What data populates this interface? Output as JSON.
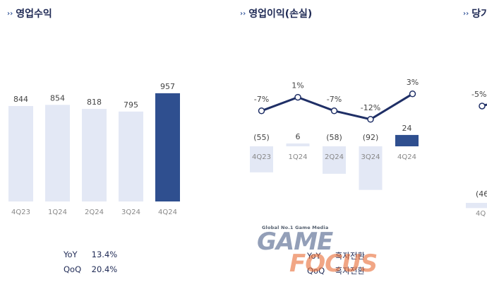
{
  "panels": {
    "revenue": {
      "title": "영업수익"
    },
    "op": {
      "title": "영업이익(손실)"
    },
    "net": {
      "title": "당기"
    }
  },
  "chart_data": [
    {
      "type": "bar",
      "title": "영업수익",
      "categories": [
        "4Q23",
        "1Q24",
        "2Q24",
        "3Q24",
        "4Q24"
      ],
      "values": [
        844,
        854,
        818,
        795,
        957
      ],
      "value_labels": [
        "844",
        "854",
        "818",
        "795",
        "957"
      ],
      "highlight_index": 4,
      "ylim": [
        0,
        1000
      ],
      "grid": false,
      "summary": [
        {
          "label": "YoY",
          "value": "13.4%"
        },
        {
          "label": "QoQ",
          "value": "20.4%"
        }
      ]
    },
    {
      "type": "bar",
      "title": "영업이익(손실)",
      "categories": [
        "4Q23",
        "1Q24",
        "2Q24",
        "3Q24",
        "4Q24"
      ],
      "values": [
        -55,
        6,
        -58,
        -92,
        24
      ],
      "value_labels": [
        "(55)",
        "6",
        "(58)",
        "(92)",
        "24"
      ],
      "highlight_index": 4,
      "grid": false,
      "line_series": {
        "values": [
          -7,
          1,
          -7,
          -12,
          3
        ],
        "labels": [
          "-7%",
          "1%",
          "-7%",
          "-12%",
          "3%"
        ]
      },
      "summary": [
        {
          "label": "YoY",
          "value": "흑자전환"
        },
        {
          "label": "QoQ",
          "value": "흑자전환"
        }
      ]
    },
    {
      "type": "bar",
      "title": "당기",
      "categories": [
        "4Q"
      ],
      "values": [
        -46
      ],
      "value_labels": [
        "(46"
      ],
      "line_series": {
        "values": [
          -5
        ],
        "labels": [
          "-5%"
        ]
      },
      "grid": false
    }
  ],
  "colors": {
    "bar_light": "#e3e8f5",
    "bar_highlight": "#2f4f8f",
    "line": "#1f2f66",
    "title": "#1f2a55"
  },
  "watermark": {
    "top_text": "Global No.1 Game Media",
    "word1": "GAME",
    "word2": "FOCUS"
  }
}
